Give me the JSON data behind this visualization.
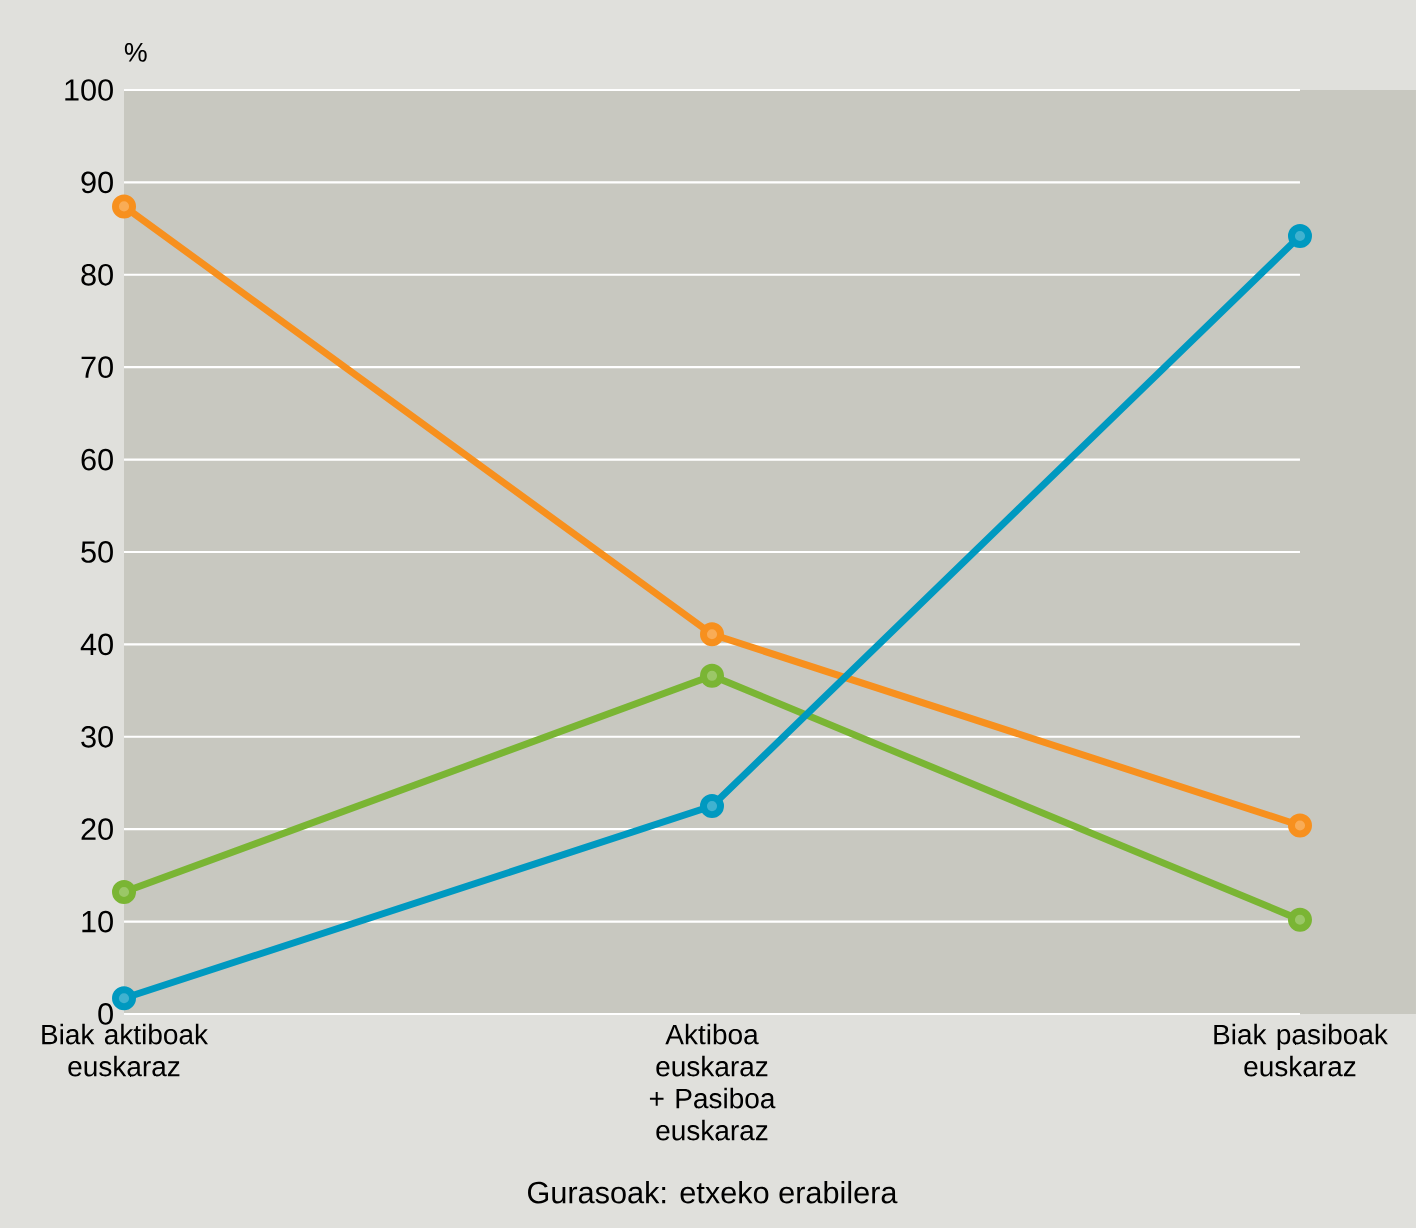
{
  "chart_data": {
    "type": "line",
    "xlabel": "Gurasoak: etxeko erabilera",
    "ylabel": "%",
    "categories": [
      "Biak aktiboak euskaraz",
      "Aktiboa euskaraz + Pasiboa euskaraz",
      "Biak pasiboak euskaraz"
    ],
    "series": [
      {
        "color": "#f7901e",
        "values": [
          87.4,
          41.1,
          20.4
        ]
      },
      {
        "color": "#7ab534",
        "values": [
          13.2,
          36.6,
          10.2
        ]
      },
      {
        "color": "#0099c0",
        "values": [
          1.7,
          22.5,
          84.2
        ]
      }
    ],
    "ylim": [
      0,
      100
    ],
    "yticks": [
      0,
      10,
      20,
      30,
      40,
      50,
      60,
      70,
      80,
      90,
      100
    ],
    "grid": "y",
    "marker": "circle"
  }
}
